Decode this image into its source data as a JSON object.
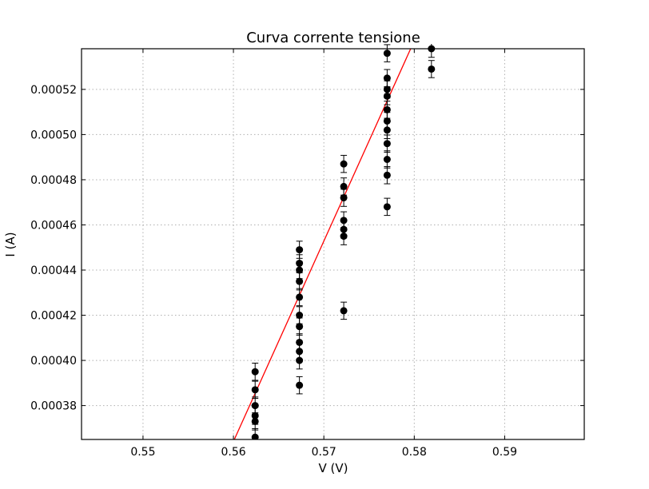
{
  "chart_data": {
    "type": "scatter",
    "title": "Curva corrente tensione",
    "xlabel": "V (V)",
    "ylabel": "I (A)",
    "xlim": [
      0.5432,
      0.5988
    ],
    "ylim": [
      0.000365,
      0.000538
    ],
    "grid": true,
    "x_ticks": [
      0.55,
      0.56,
      0.57,
      0.58,
      0.59
    ],
    "x_tick_labels": [
      "0.55",
      "0.56",
      "0.57",
      "0.58",
      "0.59"
    ],
    "y_ticks": [
      0.00038,
      0.0004,
      0.00042,
      0.00044,
      0.00046,
      0.00048,
      0.0005,
      0.00052
    ],
    "y_tick_labels": [
      "0.00038",
      "0.00040",
      "0.00042",
      "0.00044",
      "0.00046",
      "0.00048",
      "0.00050",
      "0.00052"
    ],
    "series": [
      {
        "marker": "circle",
        "color": "#000000",
        "error_y": 3.8e-06,
        "points": [
          [
            0.5624,
            0.000395
          ],
          [
            0.5624,
            0.000387
          ],
          [
            0.5624,
            0.00038
          ],
          [
            0.5624,
            0.0003755
          ],
          [
            0.5624,
            0.000373
          ],
          [
            0.5624,
            0.000366
          ],
          [
            0.5673,
            0.000449
          ],
          [
            0.5673,
            0.000443
          ],
          [
            0.5673,
            0.00044
          ],
          [
            0.5673,
            0.000435
          ],
          [
            0.5673,
            0.000428
          ],
          [
            0.5673,
            0.00042
          ],
          [
            0.5673,
            0.000415
          ],
          [
            0.5673,
            0.000408
          ],
          [
            0.5673,
            0.000404
          ],
          [
            0.5673,
            0.0004
          ],
          [
            0.5673,
            0.000389
          ],
          [
            0.5722,
            0.000487
          ],
          [
            0.5722,
            0.000477
          ],
          [
            0.5722,
            0.000472
          ],
          [
            0.5722,
            0.000462
          ],
          [
            0.5722,
            0.000458
          ],
          [
            0.5722,
            0.000455
          ],
          [
            0.5722,
            0.000422
          ],
          [
            0.577,
            0.000536
          ],
          [
            0.577,
            0.000525
          ],
          [
            0.577,
            0.00052
          ],
          [
            0.577,
            0.000517
          ],
          [
            0.577,
            0.000511
          ],
          [
            0.577,
            0.000506
          ],
          [
            0.577,
            0.000502
          ],
          [
            0.577,
            0.000496
          ],
          [
            0.577,
            0.000489
          ],
          [
            0.577,
            0.000482
          ],
          [
            0.577,
            0.000468
          ],
          [
            0.5819,
            0.000538
          ],
          [
            0.5819,
            0.000529
          ]
        ]
      }
    ],
    "fit": {
      "type": "line",
      "color": "#ff0000",
      "points": [
        [
          0.5601,
          0.000365
        ],
        [
          0.5796,
          0.000538
        ]
      ]
    }
  }
}
